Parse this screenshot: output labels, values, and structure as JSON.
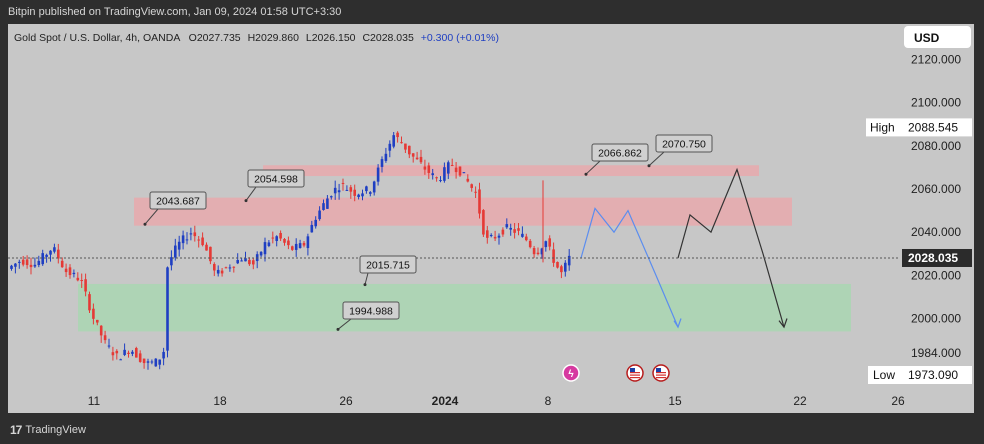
{
  "header": {
    "published_by": "Bitpin published on TradingView.com, Jan 09, 2024 01:58 UTC+3:30"
  },
  "footer": {
    "brand": "TradingView",
    "logo_icon": "tradingview-logo-icon"
  },
  "chart_data": {
    "type": "candlestick",
    "symbol_line": {
      "symbol": "Gold Spot / U.S. Dollar, 4h, OANDA",
      "open": "O2027.735",
      "high": "H2029.860",
      "low": "L2026.150",
      "close": "C2028.035",
      "change": "+0.300 (+0.01%)"
    },
    "currency": "USD",
    "y_axis": {
      "ylim": [
        1966,
        2128
      ],
      "ticks": [
        "2120.000",
        "2100.000",
        "2080.000",
        "2060.000",
        "2040.000",
        "2020.000",
        "2000.000",
        "1984.000"
      ],
      "tick_values": [
        2120,
        2100,
        2080,
        2060,
        2040,
        2020,
        2000,
        1984
      ]
    },
    "x_axis": {
      "ticks": [
        "11",
        "18",
        "26",
        "2024",
        "8",
        "15",
        "22",
        "26"
      ]
    },
    "last_price": {
      "label": "2028.035",
      "value": 2028.035
    },
    "high_marker": {
      "label": "High",
      "value_label": "2088.545",
      "value": 2088.545
    },
    "low_marker": {
      "label": "Low",
      "value_label": "1973.090",
      "value": 1973.09
    },
    "zones": [
      {
        "name": "resistance-upper",
        "from": 2066,
        "to": 2071,
        "color": "#e8a9ad"
      },
      {
        "name": "resistance-lower",
        "from": 2043,
        "to": 2056,
        "color": "#e8a9ad"
      },
      {
        "name": "support",
        "from": 1994,
        "to": 2016,
        "color": "#a9d6b1"
      }
    ],
    "annotations": [
      "2043.687",
      "2054.598",
      "2015.715",
      "1994.988",
      "2066.862",
      "2070.750"
    ],
    "colors": {
      "up": "#1f3fc2",
      "down": "#e53935",
      "projection_blue": "#5b8def",
      "projection_black": "#333333"
    },
    "event_icons": [
      "split-event-icon",
      "us-flag-event-icon",
      "us-flag-event-icon"
    ]
  }
}
